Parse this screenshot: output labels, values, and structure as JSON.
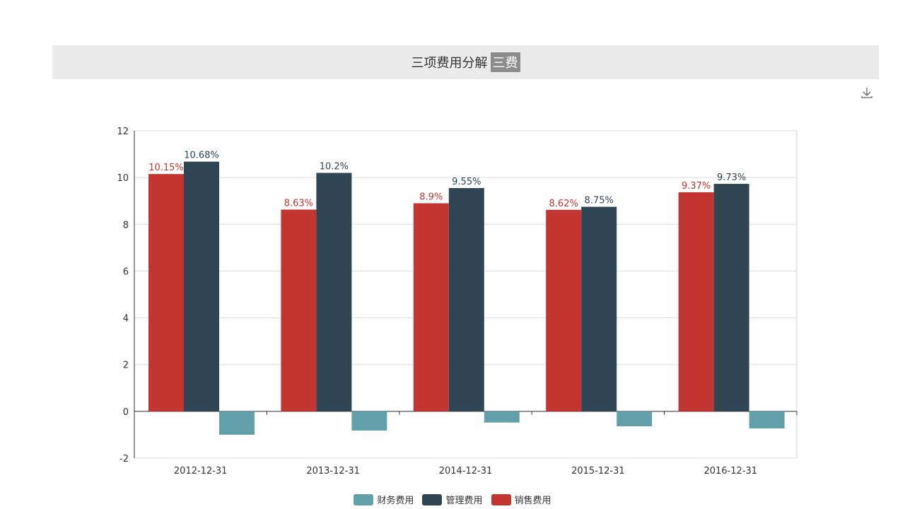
{
  "header": {
    "title": "三项费用分解",
    "badge": "三费"
  },
  "toolbar": {
    "download_icon": "download-icon"
  },
  "chart_data": {
    "type": "bar",
    "categories": [
      "2012-12-31",
      "2013-12-31",
      "2014-12-31",
      "2015-12-31",
      "2016-12-31"
    ],
    "ylim": [
      -2,
      12
    ],
    "yticks": [
      -2,
      0,
      2,
      4,
      6,
      8,
      10,
      12
    ],
    "grid": true,
    "legend_position": "bottom",
    "series": [
      {
        "name": "销售费用",
        "color": "#c23531",
        "values": [
          10.15,
          8.63,
          8.9,
          8.62,
          9.37
        ],
        "labels": [
          "10.15%",
          "8.63%",
          "8.9%",
          "8.62%",
          "9.37%"
        ],
        "label_color": "#c23531"
      },
      {
        "name": "管理费用",
        "color": "#2f4554",
        "values": [
          10.68,
          10.2,
          9.55,
          8.75,
          9.73
        ],
        "labels": [
          "10.68%",
          "10.2%",
          "9.55%",
          "8.75%",
          "9.73%"
        ],
        "label_color": "#2f4554"
      },
      {
        "name": "财务费用",
        "color": "#61a0a8",
        "values": [
          -1.0,
          -0.82,
          -0.48,
          -0.64,
          -0.73
        ],
        "labels": []
      }
    ],
    "legend": [
      "财务费用",
      "管理费用",
      "销售费用"
    ]
  }
}
